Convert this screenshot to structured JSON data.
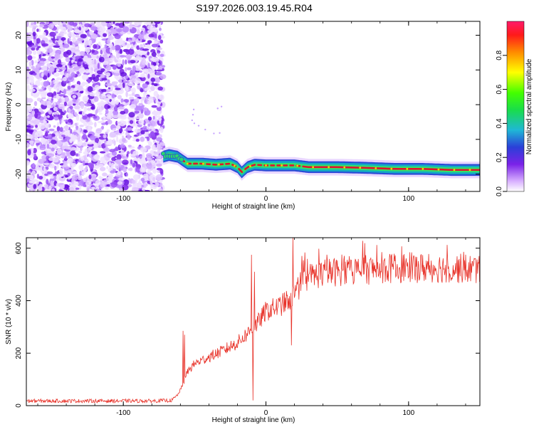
{
  "title": "S197.2026.003.19.45.R04",
  "chart_data": [
    {
      "type": "heatmap",
      "name": "spectrogram",
      "xlabel": "Height of straight line (km)",
      "ylabel": "Frequency (Hz)",
      "xlim": [
        -168,
        150
      ],
      "ylim": [
        -25,
        24
      ],
      "xticks": [
        -100,
        0,
        100
      ],
      "yticks": [
        -20,
        -10,
        0,
        10,
        20
      ],
      "noise_region_x": [
        -168,
        -72
      ],
      "ridge": {
        "x": [
          -72,
          -68,
          -62,
          -55,
          -45,
          -35,
          -25,
          -20,
          -17,
          -13,
          -8,
          0,
          10,
          20,
          30,
          50,
          70,
          90,
          110,
          130,
          150
        ],
        "y": [
          -15,
          -14.5,
          -15,
          -17,
          -17,
          -17.3,
          -17,
          -18,
          -19.5,
          -18,
          -17.3,
          -17.5,
          -17.5,
          -17.5,
          -18,
          -18,
          -18.2,
          -18.5,
          -18.5,
          -18.8,
          -18.8
        ]
      },
      "colorbar": {
        "label": "Normalized spectral amplitude",
        "range": [
          0,
          1
        ],
        "ticks": [
          "0.0",
          "0.2",
          "0.4",
          "0.6",
          "0.8"
        ],
        "tick_values": [
          0,
          0.2,
          0.4,
          0.6,
          0.8
        ]
      },
      "colors": {
        "noise": "#7a22e8",
        "band": "#13a9c4",
        "band_edge": "#2c4bd6",
        "core": "#e0142a",
        "bright": "#ffd000"
      }
    },
    {
      "type": "line",
      "name": "snr",
      "xlabel": "Height of straight line (km)",
      "ylabel": "SNR (10 * v/v)",
      "xlim": [
        -168,
        150
      ],
      "ylim": [
        0,
        640
      ],
      "xticks": [
        -100,
        0,
        100
      ],
      "yticks": [
        0,
        200,
        400,
        600
      ],
      "color": "#e8332a",
      "trend": {
        "x": [
          -168,
          -80,
          -66,
          -62,
          -58,
          -55,
          -50,
          -40,
          -30,
          -20,
          -15,
          -10,
          -5,
          0,
          10,
          15,
          20,
          25,
          30,
          40,
          60,
          80,
          100,
          120,
          150
        ],
        "y": [
          18,
          18,
          20,
          40,
          80,
          130,
          160,
          185,
          210,
          240,
          265,
          290,
          320,
          360,
          380,
          400,
          420,
          470,
          490,
          505,
          515,
          520,
          525,
          525,
          520
        ]
      },
      "spikes": [
        {
          "x": -58,
          "y": 285
        },
        {
          "x": -57,
          "y": 270
        },
        {
          "x": -10,
          "y": 575
        },
        {
          "x": -9,
          "y": 20
        },
        {
          "x": -8,
          "y": 510
        },
        {
          "x": 19,
          "y": 640
        },
        {
          "x": 18,
          "y": 230
        }
      ]
    }
  ]
}
